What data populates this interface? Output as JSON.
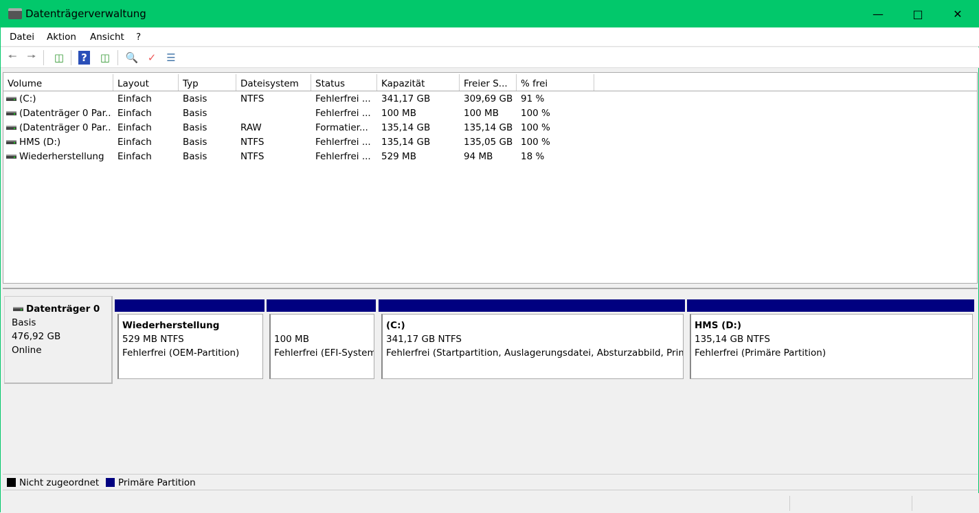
{
  "window": {
    "title": "Datenträgerverwaltung",
    "icon": "disk-management-icon",
    "accent": "#02c86b"
  },
  "menu": [
    "Datei",
    "Aktion",
    "Ansicht",
    "?"
  ],
  "toolbar": [
    "back-arrow-icon",
    "forward-arrow-icon",
    "show-hide-console-tree-icon",
    "help-icon",
    "show-hide-action-pane-icon",
    "connect-drive-icon",
    "properties-icon",
    "checklist-icon"
  ],
  "columns": [
    "Volume",
    "Layout",
    "Typ",
    "Dateisystem",
    "Status",
    "Kapazität",
    "Freier S...",
    "% frei"
  ],
  "rows": [
    [
      "(C:)",
      "Einfach",
      "Basis",
      "NTFS",
      "Fehlerfrei ...",
      "341,17 GB",
      "309,69 GB",
      "91 %"
    ],
    [
      "(Datenträger 0 Par...",
      "Einfach",
      "Basis",
      "",
      "Fehlerfrei ...",
      "100 MB",
      "100 MB",
      "100 %"
    ],
    [
      "(Datenträger 0 Par...",
      "Einfach",
      "Basis",
      "RAW",
      "Formatier...",
      "135,14 GB",
      "135,14 GB",
      "100 %"
    ],
    [
      "HMS (D:)",
      "Einfach",
      "Basis",
      "NTFS",
      "Fehlerfrei ...",
      "135,14 GB",
      "135,05 GB",
      "100 %"
    ],
    [
      "Wiederherstellung",
      "Einfach",
      "Basis",
      "NTFS",
      "Fehlerfrei ...",
      "529 MB",
      "94 MB",
      "18 %"
    ]
  ],
  "disk": {
    "name": "Datenträger 0",
    "type": "Basis",
    "size": "476,92 GB",
    "state": "Online"
  },
  "partitions": [
    {
      "name": "Wiederherstellung",
      "size": "529 MB NTFS",
      "status": "Fehlerfrei (OEM-Partition)"
    },
    {
      "name": "",
      "size": "100 MB",
      "status": "Fehlerfrei (EFI-Systempartition)"
    },
    {
      "name": "(C:)",
      "size": "341,17 GB NTFS",
      "status": "Fehlerfrei (Startpartition, Auslagerungsdatei, Absturzabbild, Primäre Partition)"
    },
    {
      "name": "HMS  (D:)",
      "size": "135,14 GB NTFS",
      "status": "Fehlerfrei (Primäre Partition)"
    }
  ],
  "legend": [
    {
      "label": "Nicht zugeordnet",
      "color": "#000000"
    },
    {
      "label": "Primäre Partition",
      "color": "#000080"
    }
  ]
}
